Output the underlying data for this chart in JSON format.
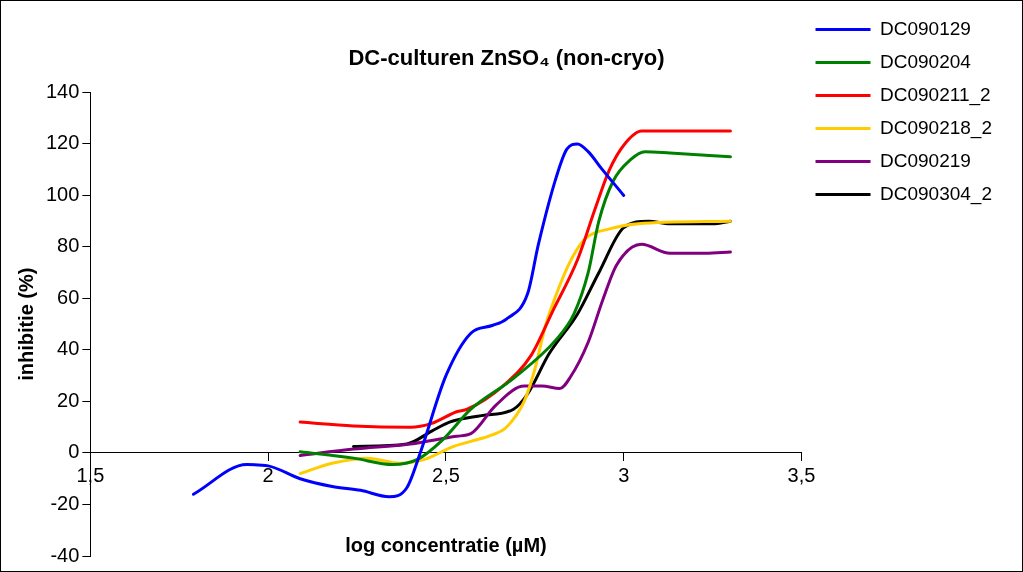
{
  "chart_data": {
    "type": "line",
    "title": "DC-culturen ZnSO₄ (non-cryo)",
    "xlabel": "log concentratie (µM)",
    "ylabel": "inhibitie (%)",
    "xlim": [
      1.5,
      3.5
    ],
    "xticks": [
      {
        "value": 1.5,
        "label": "1,5"
      },
      2,
      {
        "value": 2.5,
        "label": "2,5"
      },
      3,
      {
        "value": 3.5,
        "label": "3,5"
      }
    ],
    "ylim": [
      -40,
      140
    ],
    "yticks": [
      -40,
      -20,
      0,
      20,
      40,
      60,
      80,
      100,
      120,
      140
    ],
    "grid": false,
    "legend": "right",
    "marker": "none",
    "line_style": "solid",
    "series": [
      {
        "name": "DC090129",
        "color": "#0000ff",
        "x": [
          1.79,
          1.94,
          2.0,
          2.09,
          2.18,
          2.26,
          2.34,
          2.39,
          2.43,
          2.5,
          2.57,
          2.63,
          2.67,
          2.73,
          2.76,
          2.81,
          2.84,
          2.87,
          2.9,
          2.94,
          3.0
        ],
        "values": [
          -16,
          -4.5,
          -5,
          -10,
          -13,
          -14.5,
          -17,
          -13.5,
          1,
          30,
          46.5,
          49.5,
          52,
          62,
          81,
          107,
          118,
          120,
          117,
          110,
          100
        ]
      },
      {
        "name": "DC090204",
        "color": "#008000",
        "x": [
          2.09,
          2.24,
          2.35,
          2.42,
          2.49,
          2.57,
          2.69,
          2.81,
          2.86,
          2.9,
          2.93,
          2.97,
          3.02,
          3.06,
          3.13,
          3.3
        ],
        "values": [
          0.5,
          -2,
          -4.5,
          -2.5,
          5,
          17,
          29,
          44,
          54,
          70,
          90,
          105.5,
          114,
          117,
          116.5,
          115
        ]
      },
      {
        "name": "DC090211_2",
        "color": "#ff0000",
        "x": [
          2.09,
          2.24,
          2.4,
          2.46,
          2.53,
          2.56,
          2.66,
          2.74,
          2.8,
          2.87,
          2.92,
          2.96,
          3.0,
          3.05,
          3.3
        ],
        "values": [
          12,
          10.5,
          10,
          11.5,
          16,
          17,
          26,
          38,
          55,
          75,
          95,
          110,
          119.5,
          125,
          125
        ]
      },
      {
        "name": "DC090218_2",
        "color": "#ffcc00",
        "x": [
          2.09,
          2.18,
          2.28,
          2.37,
          2.44,
          2.52,
          2.57,
          2.63,
          2.67,
          2.72,
          2.75,
          2.78,
          2.82,
          2.85,
          2.89,
          2.96,
          3.04,
          3.3
        ],
        "values": [
          -8,
          -4,
          -2,
          -4,
          -2.5,
          2.5,
          4.5,
          7,
          10,
          20,
          32.5,
          49.5,
          65,
          74.5,
          83,
          87,
          89,
          90
        ]
      },
      {
        "name": "DC090219",
        "color": "#800080",
        "x": [
          2.09,
          2.24,
          2.4,
          2.53,
          2.57,
          2.64,
          2.72,
          2.77,
          2.82,
          2.85,
          2.9,
          2.94,
          2.98,
          3.05,
          3.13,
          3.23,
          3.3
        ],
        "values": [
          -1,
          1.5,
          3.5,
          6.5,
          7.5,
          18.5,
          26,
          26,
          25,
          29.5,
          43,
          59,
          73,
          81,
          77.5,
          77.5,
          78
        ]
      },
      {
        "name": "DC090304_2",
        "color": "#000000",
        "x": [
          2.24,
          2.39,
          2.46,
          2.51,
          2.6,
          2.69,
          2.73,
          2.79,
          2.87,
          2.93,
          3.0,
          3.07,
          3.13,
          3.25,
          3.3
        ],
        "values": [
          2.5,
          3.5,
          8.5,
          12,
          14.5,
          17,
          23,
          38.5,
          54,
          70,
          87.5,
          90,
          89,
          89,
          90
        ]
      }
    ]
  }
}
